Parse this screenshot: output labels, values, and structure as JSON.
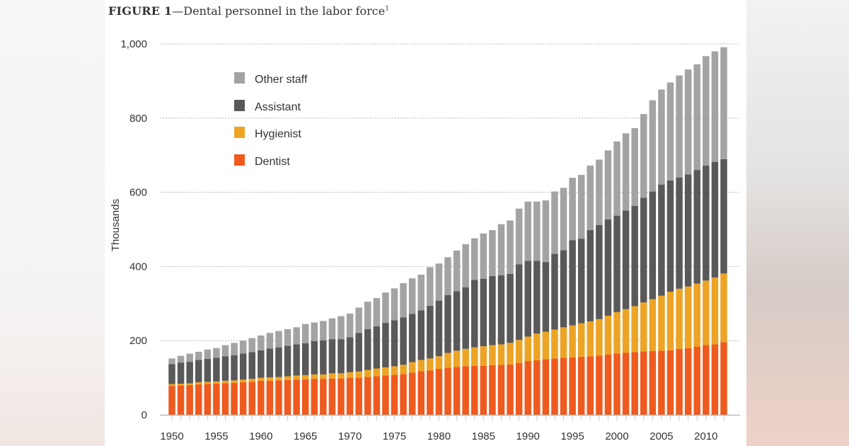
{
  "figure": {
    "label": "FIGURE 1",
    "caption": "—Dental personnel in the labor force",
    "footnote_mark": "1"
  },
  "colors": {
    "Dentist": "#ef5a1e",
    "Hygienist": "#eda425",
    "Assistant": "#595959",
    "Other staff": "#a3a3a3",
    "grid": "#b5b5b5",
    "axis": "#bbbbbb"
  },
  "chart_data": {
    "type": "bar",
    "stacked": true,
    "title": "Dental personnel in the labor force",
    "xlabel": "",
    "ylabel": "Thousands",
    "ylim": [
      0,
      1000
    ],
    "yticks": [
      0,
      200,
      400,
      600,
      800,
      1000
    ],
    "ytick_labels": [
      "0",
      "200",
      "400",
      "600",
      "800",
      "1,000"
    ],
    "xtick_labels": [
      "1950",
      "1955",
      "1960",
      "1965",
      "1970",
      "1975",
      "1980",
      "1985",
      "1990",
      "1995",
      "2000",
      "2005",
      "2010"
    ],
    "grid": true,
    "legend_position": "top-left",
    "legend_order": [
      "Other staff",
      "Assistant",
      "Hygienist",
      "Dentist"
    ],
    "categories": [
      1950,
      1951,
      1952,
      1953,
      1954,
      1955,
      1956,
      1957,
      1958,
      1959,
      1960,
      1961,
      1962,
      1963,
      1964,
      1965,
      1966,
      1967,
      1968,
      1969,
      1970,
      1971,
      1972,
      1973,
      1974,
      1975,
      1976,
      1977,
      1978,
      1979,
      1980,
      1981,
      1982,
      1983,
      1984,
      1985,
      1986,
      1987,
      1988,
      1989,
      1990,
      1991,
      1992,
      1993,
      1994,
      1995,
      1996,
      1997,
      1998,
      1999,
      2000,
      2001,
      2002,
      2003,
      2004,
      2005,
      2006,
      2007,
      2008,
      2009,
      2010,
      2011,
      2012
    ],
    "series": [
      {
        "name": "Dentist",
        "values": [
          78,
          79,
          80,
          82,
          83,
          84,
          85,
          86,
          88,
          89,
          92,
          92,
          93,
          94,
          95,
          96,
          97,
          97,
          98,
          98,
          100,
          100,
          102,
          104,
          106,
          108,
          110,
          114,
          118,
          120,
          124,
          127,
          129,
          131,
          132,
          132,
          134,
          135,
          136,
          140,
          145,
          147,
          150,
          152,
          154,
          155,
          157,
          158,
          160,
          163,
          165,
          167,
          169,
          171,
          172,
          173,
          174,
          178,
          180,
          184,
          188,
          190,
          196
        ]
      },
      {
        "name": "Hygienist",
        "values": [
          5,
          5,
          5,
          6,
          6,
          6,
          7,
          7,
          7,
          8,
          8,
          9,
          9,
          10,
          11,
          11,
          12,
          12,
          14,
          14,
          15,
          17,
          19,
          21,
          22,
          23,
          25,
          28,
          30,
          32,
          34,
          40,
          44,
          47,
          50,
          53,
          54,
          55,
          58,
          62,
          66,
          72,
          74,
          78,
          82,
          86,
          90,
          94,
          98,
          104,
          112,
          118,
          124,
          132,
          140,
          148,
          158,
          162,
          166,
          170,
          174,
          180,
          185
        ]
      },
      {
        "name": "Assistant",
        "values": [
          54,
          57,
          58,
          60,
          62,
          64,
          66,
          68,
          70,
          72,
          74,
          78,
          80,
          82,
          84,
          86,
          90,
          92,
          92,
          92,
          94,
          104,
          110,
          114,
          120,
          124,
          128,
          130,
          134,
          142,
          150,
          156,
          160,
          166,
          182,
          182,
          186,
          186,
          186,
          204,
          204,
          196,
          188,
          204,
          208,
          230,
          228,
          246,
          254,
          260,
          260,
          266,
          270,
          282,
          290,
          300,
          300,
          300,
          302,
          306,
          310,
          312,
          308
        ]
      },
      {
        "name": "Other staff",
        "values": [
          15,
          18,
          22,
          22,
          25,
          26,
          30,
          33,
          35,
          38,
          40,
          42,
          44,
          45,
          46,
          52,
          50,
          52,
          56,
          62,
          64,
          68,
          74,
          76,
          82,
          86,
          92,
          96,
          96,
          104,
          100,
          102,
          110,
          116,
          112,
          122,
          124,
          138,
          144,
          150,
          160,
          160,
          166,
          168,
          168,
          168,
          172,
          174,
          176,
          186,
          200,
          208,
          210,
          226,
          246,
          256,
          264,
          275,
          283,
          285,
          295,
          298,
          302
        ]
      }
    ]
  }
}
